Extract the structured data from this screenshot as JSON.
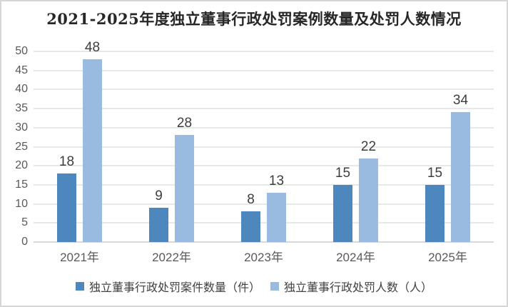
{
  "chart_data": {
    "type": "bar",
    "title": "2021-2025年度独立董事行政处罚案例数量及处罚人数情况",
    "categories": [
      "2021年",
      "2022年",
      "2023年",
      "2024年",
      "2025年"
    ],
    "series": [
      {
        "name": "独立董事行政处罚案件数量（件）",
        "color": "#4E87BD",
        "values": [
          18,
          9,
          8,
          15,
          15
        ]
      },
      {
        "name": "独立董事行政处罚人数（人）",
        "color": "#9ABBE0",
        "values": [
          48,
          28,
          13,
          22,
          34
        ]
      }
    ],
    "data_labels": true,
    "ylim": [
      0,
      50
    ],
    "ytick_step": 5,
    "yticks": [
      0,
      5,
      10,
      15,
      20,
      25,
      30,
      35,
      40,
      45,
      50
    ],
    "grid": "horizontal",
    "legend_position": "bottom",
    "xlabel": "",
    "ylabel": ""
  },
  "colors": {
    "series_dark": "#4E87BD",
    "series_light": "#9ABBE0",
    "gridline": "#e8e8e8",
    "axis_text": "#595959",
    "data_label_text": "#3d3d3d",
    "card_border": "#d6d6d6"
  }
}
